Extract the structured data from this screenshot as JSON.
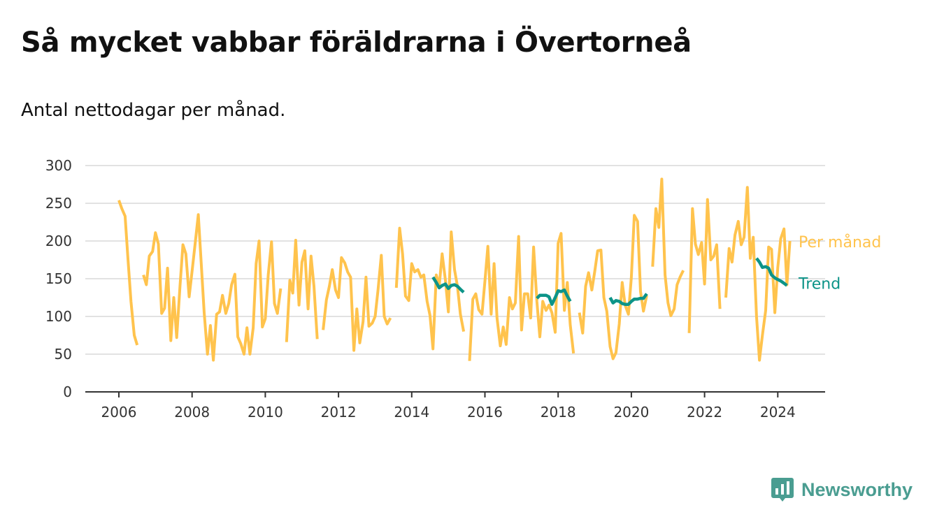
{
  "title": "Så mycket vabbar föräldrarna i Övertorneå",
  "subtitle": "Antal nettodagar per månad.",
  "brand": {
    "name": "Newsworthy",
    "logo_icon": "bar-chart-badge-icon"
  },
  "colors": {
    "monthly": "#ffc34d",
    "trend": "#0d9488",
    "grid": "#d9d9d9",
    "axis": "#333333",
    "brand": "#4a9d91"
  },
  "chart_data": {
    "type": "line",
    "ylim": [
      0,
      300
    ],
    "yticks": [
      "0",
      "50",
      "100",
      "150",
      "200",
      "250",
      "300"
    ],
    "xticks": [
      "2006",
      "2008",
      "2010",
      "2012",
      "2014",
      "2016",
      "2018",
      "2020",
      "2022",
      "2024"
    ],
    "xlim": [
      2005.1,
      2025.2
    ],
    "grid": true,
    "series": [
      {
        "name": "Per månad",
        "points": [
          [
            [
              2006.0,
              254
            ],
            [
              2006.08,
              243
            ],
            [
              2006.17,
              233
            ],
            [
              2006.25,
              175
            ],
            [
              2006.33,
              120
            ],
            [
              2006.42,
              75
            ],
            [
              2006.5,
              62
            ]
          ],
          [
            [
              2006.67,
              155
            ],
            [
              2006.75,
              142
            ],
            [
              2006.83,
              180
            ],
            [
              2006.92,
              186
            ],
            [
              2007.0,
              211
            ],
            [
              2007.08,
              196
            ],
            [
              2007.17,
              104
            ],
            [
              2007.25,
              111
            ],
            [
              2007.33,
              164
            ],
            [
              2007.42,
              68
            ],
            [
              2007.5,
              125
            ],
            [
              2007.58,
              72
            ],
            [
              2007.67,
              140
            ],
            [
              2007.75,
              195
            ],
            [
              2007.83,
              183
            ],
            [
              2007.92,
              126
            ],
            [
              2008.0,
              160
            ],
            [
              2008.08,
              195
            ],
            [
              2008.17,
              235
            ],
            [
              2008.25,
              170
            ],
            [
              2008.33,
              105
            ],
            [
              2008.42,
              50
            ],
            [
              2008.5,
              88
            ],
            [
              2008.58,
              42
            ],
            [
              2008.67,
              103
            ],
            [
              2008.75,
              106
            ],
            [
              2008.83,
              128
            ],
            [
              2008.92,
              104
            ],
            [
              2009.0,
              117
            ],
            [
              2009.08,
              142
            ],
            [
              2009.17,
              156
            ],
            [
              2009.25,
              73
            ],
            [
              2009.33,
              64
            ],
            [
              2009.42,
              50
            ],
            [
              2009.5,
              85
            ],
            [
              2009.58,
              50
            ],
            [
              2009.67,
              85
            ],
            [
              2009.75,
              170
            ],
            [
              2009.83,
              200
            ],
            [
              2009.92,
              86
            ],
            [
              2010.0,
              97
            ],
            [
              2010.08,
              155
            ],
            [
              2010.17,
              199
            ],
            [
              2010.25,
              117
            ],
            [
              2010.33,
              104
            ],
            [
              2010.42,
              137
            ]
          ],
          [
            [
              2010.58,
              66
            ],
            [
              2010.67,
              148
            ],
            [
              2010.75,
              131
            ],
            [
              2010.83,
              201
            ],
            [
              2010.92,
              115
            ],
            [
              2011.0,
              172
            ],
            [
              2011.08,
              187
            ],
            [
              2011.17,
              110
            ],
            [
              2011.25,
              180
            ],
            [
              2011.33,
              140
            ],
            [
              2011.42,
              70
            ]
          ],
          [
            [
              2011.58,
              82
            ],
            [
              2011.67,
              122
            ],
            [
              2011.75,
              140
            ],
            [
              2011.83,
              162
            ],
            [
              2011.92,
              135
            ],
            [
              2012.0,
              125
            ],
            [
              2012.08,
              178
            ],
            [
              2012.17,
              171
            ],
            [
              2012.25,
              159
            ],
            [
              2012.33,
              152
            ],
            [
              2012.42,
              55
            ],
            [
              2012.5,
              110
            ],
            [
              2012.58,
              65
            ],
            [
              2012.67,
              93
            ],
            [
              2012.75,
              152
            ],
            [
              2012.83,
              87
            ],
            [
              2012.92,
              91
            ],
            [
              2013.0,
              100
            ],
            [
              2013.08,
              135
            ],
            [
              2013.17,
              181
            ],
            [
              2013.25,
              100
            ],
            [
              2013.33,
              90
            ],
            [
              2013.42,
              98
            ]
          ],
          [
            [
              2013.58,
              138
            ],
            [
              2013.67,
              217
            ],
            [
              2013.75,
              183
            ],
            [
              2013.83,
              127
            ],
            [
              2013.92,
              121
            ],
            [
              2014.0,
              170
            ],
            [
              2014.08,
              159
            ],
            [
              2014.17,
              162
            ],
            [
              2014.25,
              152
            ],
            [
              2014.33,
              155
            ],
            [
              2014.42,
              120
            ],
            [
              2014.5,
              101
            ],
            [
              2014.58,
              57
            ],
            [
              2014.67,
              155
            ],
            [
              2014.75,
              140
            ],
            [
              2014.83,
              183
            ],
            [
              2014.92,
              148
            ],
            [
              2015.0,
              106
            ],
            [
              2015.08,
              212
            ],
            [
              2015.17,
              162
            ],
            [
              2015.25,
              140
            ],
            [
              2015.33,
              103
            ],
            [
              2015.42,
              80
            ]
          ],
          [
            [
              2015.58,
              41
            ],
            [
              2015.67,
              123
            ],
            [
              2015.75,
              130
            ],
            [
              2015.83,
              109
            ],
            [
              2015.92,
              103
            ],
            [
              2016.0,
              147
            ],
            [
              2016.08,
              193
            ],
            [
              2016.17,
              103
            ],
            [
              2016.25,
              170
            ],
            [
              2016.33,
              98
            ],
            [
              2016.42,
              61
            ],
            [
              2016.5,
              86
            ],
            [
              2016.58,
              63
            ],
            [
              2016.67,
              125
            ],
            [
              2016.75,
              110
            ],
            [
              2016.83,
              118
            ],
            [
              2016.92,
              206
            ],
            [
              2017.0,
              82
            ],
            [
              2017.08,
              130
            ],
            [
              2017.17,
              130
            ],
            [
              2017.25,
              98
            ],
            [
              2017.33,
              192
            ],
            [
              2017.42,
              120
            ],
            [
              2017.5,
              73
            ],
            [
              2017.58,
              120
            ],
            [
              2017.67,
              108
            ],
            [
              2017.75,
              115
            ],
            [
              2017.83,
              105
            ],
            [
              2017.92,
              79
            ],
            [
              2018.0,
              197
            ],
            [
              2018.08,
              210
            ],
            [
              2018.17,
              108
            ],
            [
              2018.25,
              145
            ],
            [
              2018.33,
              89
            ],
            [
              2018.42,
              51
            ]
          ],
          [
            [
              2018.58,
              105
            ],
            [
              2018.67,
              78
            ],
            [
              2018.75,
              140
            ],
            [
              2018.83,
              158
            ],
            [
              2018.92,
              135
            ],
            [
              2019.0,
              160
            ],
            [
              2019.08,
              187
            ],
            [
              2019.17,
              188
            ],
            [
              2019.25,
              125
            ],
            [
              2019.33,
              107
            ],
            [
              2019.42,
              60
            ],
            [
              2019.5,
              44
            ],
            [
              2019.58,
              52
            ],
            [
              2019.67,
              90
            ],
            [
              2019.75,
              145
            ],
            [
              2019.83,
              115
            ],
            [
              2019.92,
              103
            ],
            [
              2020.0,
              152
            ],
            [
              2020.08,
              234
            ],
            [
              2020.17,
              226
            ],
            [
              2020.25,
              133
            ],
            [
              2020.33,
              107
            ],
            [
              2020.42,
              128
            ]
          ],
          [
            [
              2020.58,
              166
            ],
            [
              2020.67,
              243
            ],
            [
              2020.75,
              218
            ],
            [
              2020.83,
              282
            ],
            [
              2020.92,
              155
            ],
            [
              2021.0,
              118
            ],
            [
              2021.08,
              101
            ],
            [
              2021.17,
              110
            ],
            [
              2021.25,
              142
            ],
            [
              2021.33,
              152
            ],
            [
              2021.42,
              161
            ]
          ],
          [
            [
              2021.58,
              78
            ],
            [
              2021.67,
              243
            ],
            [
              2021.75,
              196
            ],
            [
              2021.83,
              182
            ],
            [
              2021.92,
              198
            ],
            [
              2022.0,
              143
            ],
            [
              2022.08,
              255
            ],
            [
              2022.17,
              175
            ],
            [
              2022.25,
              180
            ],
            [
              2022.33,
              195
            ],
            [
              2022.42,
              110
            ]
          ],
          [
            [
              2022.58,
              125
            ],
            [
              2022.67,
              190
            ],
            [
              2022.75,
              172
            ],
            [
              2022.83,
              208
            ],
            [
              2022.92,
              226
            ],
            [
              2023.0,
              195
            ],
            [
              2023.08,
              205
            ],
            [
              2023.17,
              271
            ],
            [
              2023.25,
              177
            ],
            [
              2023.33,
              205
            ],
            [
              2023.42,
              100
            ],
            [
              2023.5,
              42
            ],
            [
              2023.58,
              75
            ],
            [
              2023.67,
              108
            ],
            [
              2023.75,
              192
            ],
            [
              2023.83,
              189
            ],
            [
              2023.92,
              105
            ],
            [
              2024.0,
              165
            ],
            [
              2024.08,
              203
            ],
            [
              2024.17,
              216
            ],
            [
              2024.25,
              142
            ],
            [
              2024.33,
              200
            ]
          ]
        ]
      },
      {
        "name": "Trend",
        "points": [
          [
            [
              2014.58,
              152
            ],
            [
              2014.67,
              145
            ],
            [
              2014.75,
              138
            ],
            [
              2014.83,
              141
            ],
            [
              2014.92,
              143
            ],
            [
              2015.0,
              137
            ],
            [
              2015.08,
              141
            ],
            [
              2015.17,
              142
            ],
            [
              2015.25,
              140
            ],
            [
              2015.33,
              136
            ],
            [
              2015.42,
              132
            ]
          ],
          [
            [
              2017.42,
              124
            ],
            [
              2017.5,
              128
            ],
            [
              2017.58,
              128
            ],
            [
              2017.67,
              128
            ],
            [
              2017.75,
              126
            ],
            [
              2017.83,
              116
            ],
            [
              2017.92,
              125
            ],
            [
              2018.0,
              134
            ],
            [
              2018.08,
              133
            ],
            [
              2018.17,
              135
            ],
            [
              2018.25,
              127
            ],
            [
              2018.33,
              120
            ]
          ],
          [
            [
              2019.42,
              125
            ],
            [
              2019.5,
              118
            ],
            [
              2019.58,
              121
            ],
            [
              2019.67,
              120
            ],
            [
              2019.75,
              117
            ],
            [
              2019.83,
              116
            ],
            [
              2019.92,
              116
            ],
            [
              2020.0,
              120
            ],
            [
              2020.08,
              123
            ],
            [
              2020.17,
              123
            ],
            [
              2020.25,
              124
            ],
            [
              2020.33,
              124
            ],
            [
              2020.42,
              130
            ]
          ],
          [
            [
              2023.42,
              177
            ],
            [
              2023.5,
              172
            ],
            [
              2023.58,
              165
            ],
            [
              2023.67,
              166
            ],
            [
              2023.75,
              164
            ],
            [
              2023.83,
              155
            ],
            [
              2023.92,
              151
            ],
            [
              2024.0,
              149
            ],
            [
              2024.08,
              147
            ],
            [
              2024.17,
              144
            ],
            [
              2024.25,
              141
            ]
          ]
        ]
      }
    ],
    "annotations": [
      {
        "text": "Per månad",
        "series": "Per månad",
        "at_value": 200
      },
      {
        "text": "Trend",
        "series": "Trend",
        "at_value": 145
      }
    ]
  }
}
